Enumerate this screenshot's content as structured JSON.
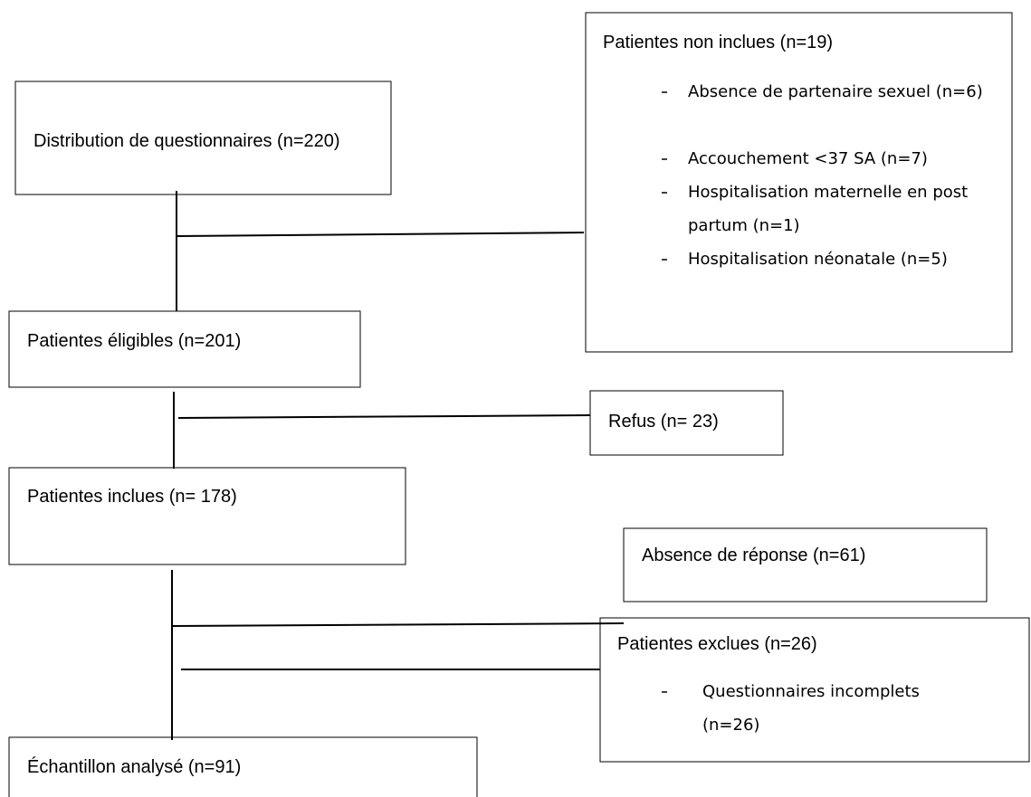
{
  "nodes": [
    {
      "label": "Distribution de questionnaires (n=220)"
    },
    {
      "label": "Patientes non inclues (n=19)",
      "items": [
        "Absence de partenaire sexuel (n=6)",
        "Accouchement <37 SA (n=7)",
        "Hospitalisation maternelle en post partum (n=1)",
        "Hospitalisation néonatale (n=5)"
      ]
    },
    {
      "label": "Patientes éligibles (n=201)"
    },
    {
      "label": "Refus (n= 23)"
    },
    {
      "label": "Patientes inclues (n= 178)"
    },
    {
      "label": "Absence de réponse (n=61)"
    },
    {
      "label": "Patientes exclues (n=26)",
      "items": [
        "Questionnaires incomplets (n=26)"
      ]
    },
    {
      "label": "Échantillon analysé (n=91)"
    }
  ]
}
